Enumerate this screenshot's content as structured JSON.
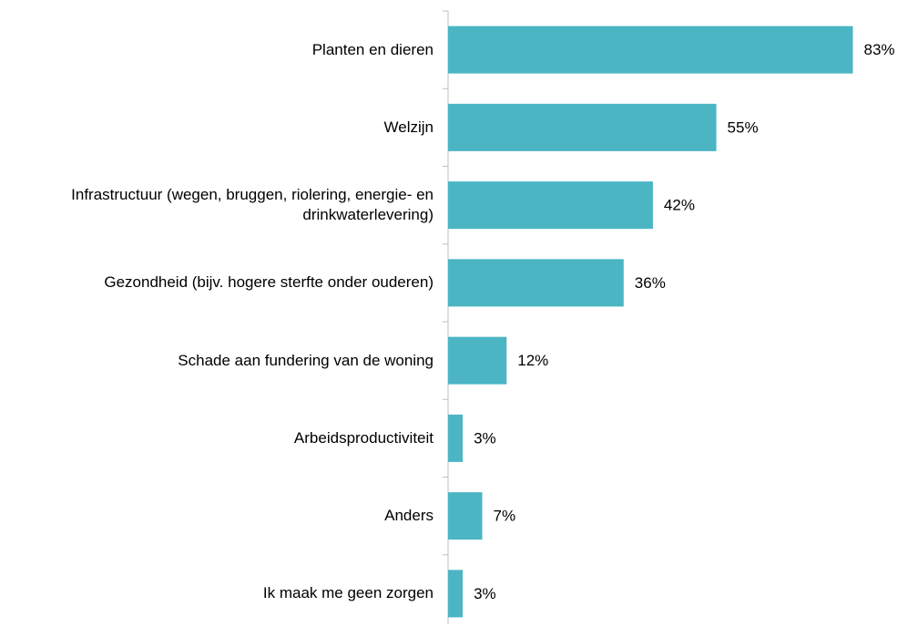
{
  "chart_data": {
    "type": "barh",
    "categories": [
      "Planten en dieren",
      "Welzijn",
      "Infrastructuur (wegen, bruggen, riolering, energie- en drinkwaterlevering)",
      "Gezondheid (bijv. hogere sterfte onder ouderen)",
      "Schade aan fundering van de woning",
      "Arbeidsproductiviteit",
      "Anders",
      "Ik maak me geen zorgen"
    ],
    "values": [
      83,
      55,
      42,
      36,
      12,
      3,
      7,
      3
    ],
    "value_labels": [
      "83%",
      "55%",
      "42%",
      "36%",
      "12%",
      "3%",
      "7%",
      "3%"
    ],
    "color": "#4bb5c4",
    "xlim": [
      0,
      90
    ]
  }
}
